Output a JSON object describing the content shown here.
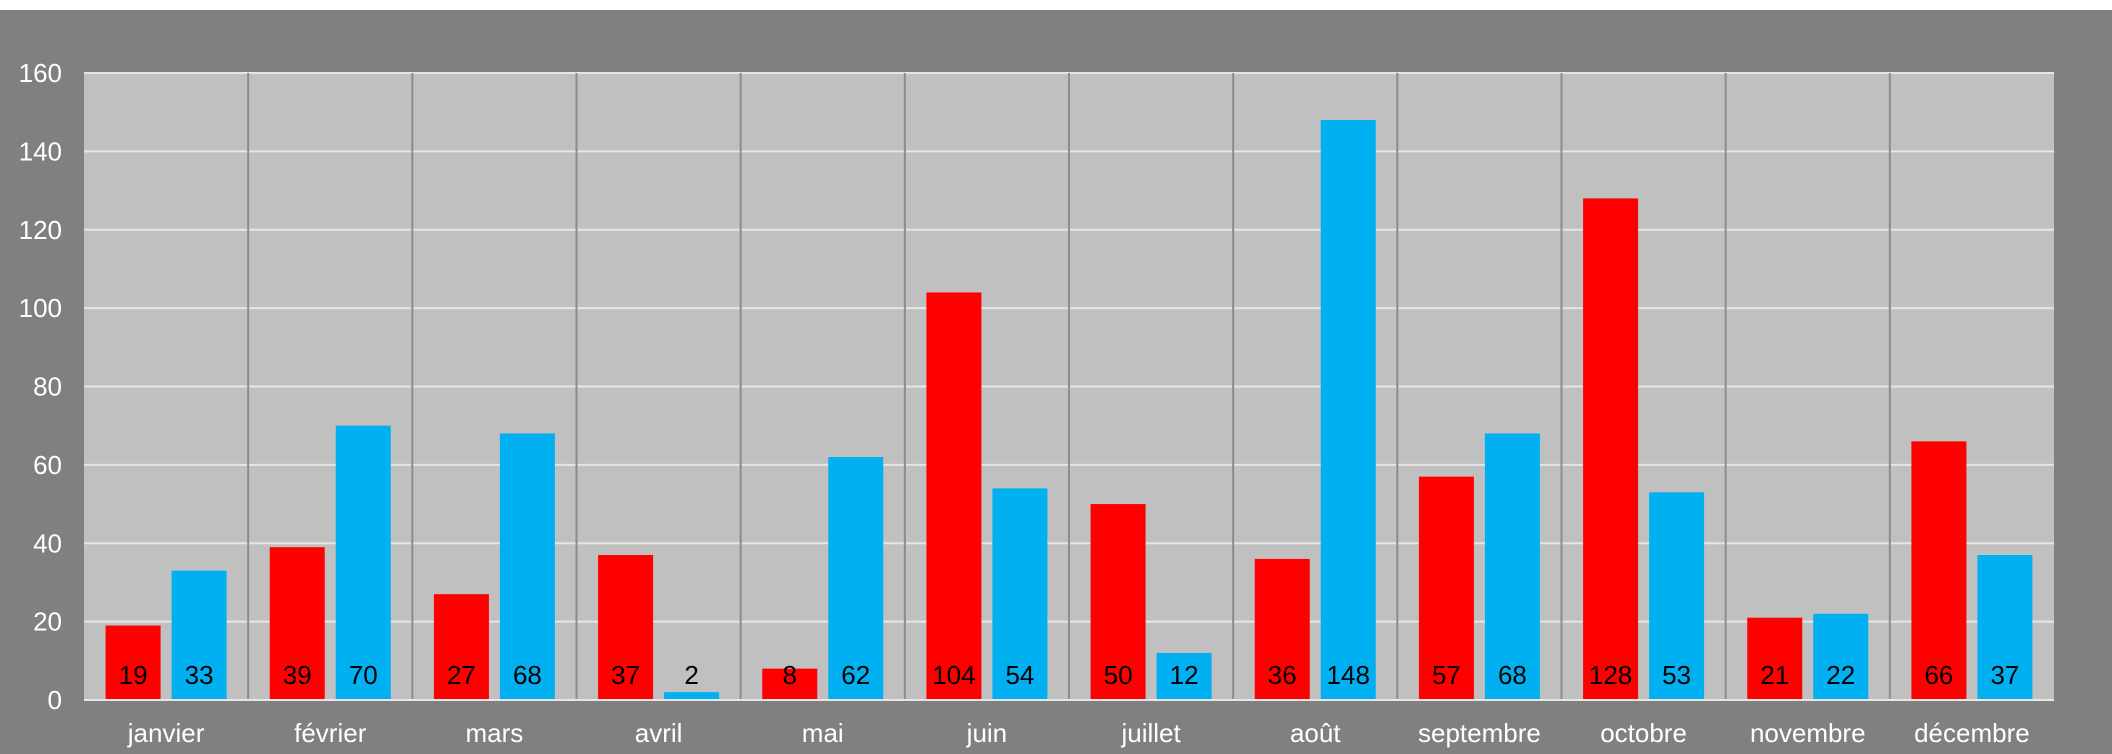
{
  "chart_data": {
    "type": "bar",
    "categories": [
      "janvier",
      "février",
      "mars",
      "avril",
      "mai",
      "juin",
      "juillet",
      "août",
      "septembre",
      "octobre",
      "novembre",
      "décembre"
    ],
    "series": [
      {
        "color": "#ff0000",
        "values": [
          19,
          39,
          27,
          37,
          8,
          104,
          50,
          36,
          57,
          128,
          21,
          66
        ]
      },
      {
        "color": "#00b0f0",
        "values": [
          33,
          70,
          68,
          2,
          62,
          54,
          12,
          148,
          68,
          53,
          22,
          37
        ]
      }
    ],
    "ylim": [
      0,
      160
    ],
    "yticks": [
      0,
      20,
      40,
      60,
      80,
      100,
      120,
      140,
      160
    ],
    "grid": true,
    "data_labels": true,
    "colors": {
      "background": "#808080",
      "plot_area": "#c0c0c0",
      "gridline": "#e6e6e6",
      "category_divider": "#8c8c8c",
      "axis_text": "#ffffff"
    }
  }
}
